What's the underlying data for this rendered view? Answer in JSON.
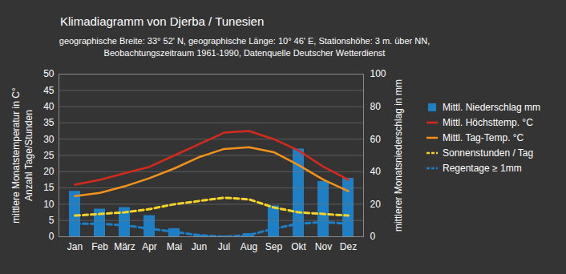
{
  "chart_data": {
    "type": "bar",
    "title": "Klimadiagramm von Djerba / Tunesien",
    "subtitle": [
      "geographische Breite: 33° 52' N, geographische Länge: 10° 46' E, Stationshöhe: 3 m. über NN,",
      "Beobachtungszeitraum 1961-1990, Datenquelle Deutscher Wetterdienst"
    ],
    "ylabel": [
      "mittlere Monatstemperatur in C°",
      "Anzahl Tage/Stunden"
    ],
    "y2label": "mittlerer Monatsniederschlag in mm",
    "categories": [
      "Jan",
      "Feb",
      "März",
      "Apr",
      "Mai",
      "Jun",
      "Jul",
      "Aug",
      "Sep",
      "Okt",
      "Nov",
      "Dez"
    ],
    "ylim": [
      0,
      50
    ],
    "yticks": [
      0,
      5,
      10,
      15,
      20,
      25,
      30,
      35,
      40,
      45,
      50
    ],
    "y2lim": [
      0,
      100
    ],
    "y2ticks": [
      0,
      20,
      40,
      60,
      80,
      100
    ],
    "grid": true,
    "legend": "right",
    "series": [
      {
        "name": "Mittl. Niederschlag mm",
        "type": "bar",
        "axis": "y2",
        "color": "#1f7fc4",
        "values": [
          28,
          17,
          18,
          13,
          5,
          1,
          0.5,
          2,
          19,
          54,
          34,
          36
        ]
      },
      {
        "name": "Mittl. Höchsttemp. °C",
        "type": "line",
        "color": "#d42a1e",
        "line_style": "solid",
        "values": [
          16,
          17.5,
          19.5,
          21.5,
          25,
          28.5,
          32,
          32.5,
          30,
          26.5,
          21.5,
          17.5
        ]
      },
      {
        "name": "Mittl. Tag-Temp. °C",
        "type": "line",
        "color": "#f2921c",
        "line_style": "solid",
        "values": [
          12.5,
          13.5,
          15.5,
          18,
          21,
          24.5,
          27,
          27.5,
          26,
          22,
          17.5,
          14
        ]
      },
      {
        "name": "Sonnenstunden / Tag",
        "type": "line",
        "color": "#f5d327",
        "line_style": "dashed",
        "values": [
          6.5,
          7,
          7.5,
          8.5,
          10,
          11,
          12,
          11.5,
          9,
          7.5,
          7,
          6.5
        ]
      },
      {
        "name": "Regentage ≥ 1mm",
        "type": "line",
        "color": "#1f7fc4",
        "line_style": "dashed",
        "values": [
          4,
          4,
          3.5,
          2.5,
          1.5,
          0.5,
          0,
          0.5,
          2.5,
          4,
          4.5,
          4
        ]
      }
    ]
  }
}
